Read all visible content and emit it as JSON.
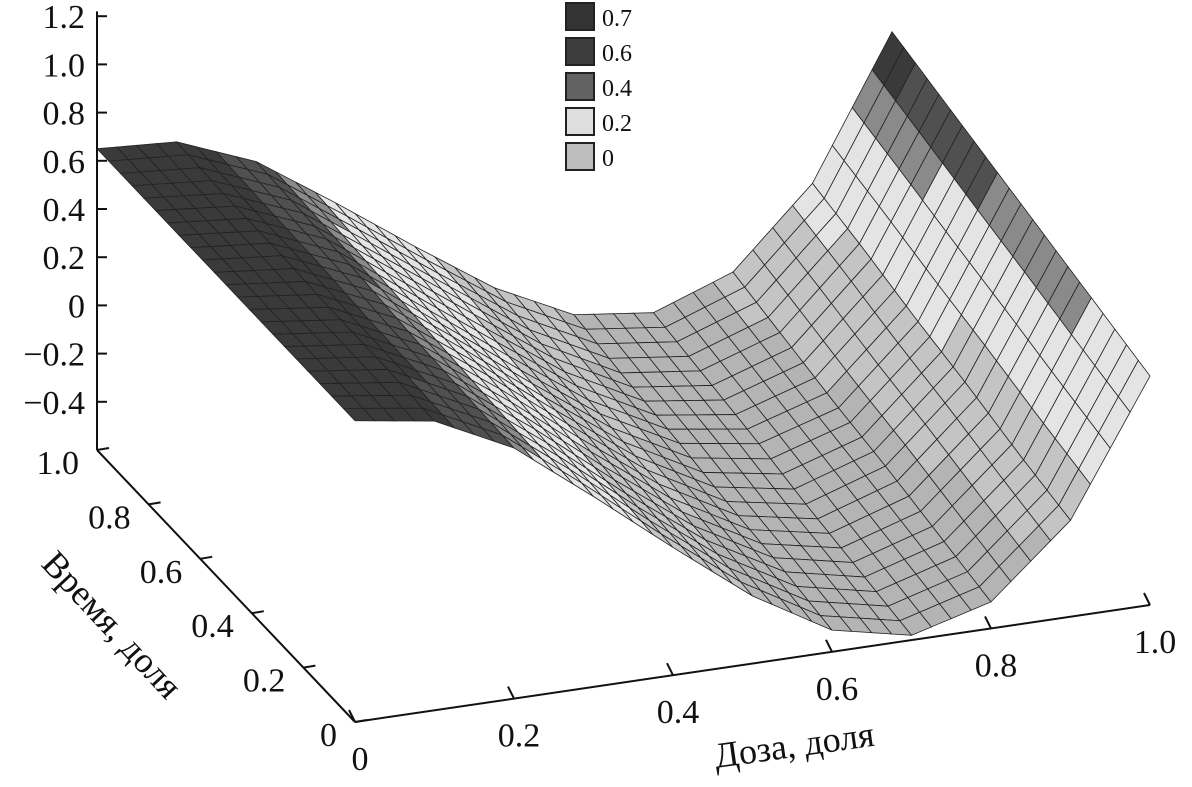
{
  "chart_data": {
    "type": "surface",
    "x_axis": {
      "label": "Доза, доля",
      "ticks": [
        "0",
        "0.2",
        "0.4",
        "0.6",
        "0.8",
        "1.0"
      ],
      "range": [
        0,
        1
      ]
    },
    "y_axis": {
      "label": "Время, доля",
      "ticks": [
        "0",
        "0.2",
        "0.4",
        "0.6",
        "0.8",
        "1.0"
      ],
      "range": [
        0,
        1
      ]
    },
    "z_axis": {
      "label": "",
      "ticks": [
        "1.2",
        "1.0",
        "0.8",
        "0.6",
        "0.4",
        "0.2",
        "0",
        "−0.2",
        "−0.4"
      ],
      "range": [
        -0.6,
        1.2
      ]
    },
    "legend": [
      {
        "label": "0.7",
        "color": "#333333"
      },
      {
        "label": "0.6",
        "color": "#3d3d3d"
      },
      {
        "label": "0.4",
        "color": "#626262"
      },
      {
        "label": "0.2",
        "color": "#dedede"
      },
      {
        "label": "0",
        "color": "#bdbdbd"
      }
    ],
    "dose": [
      0,
      0.1,
      0.2,
      0.3,
      0.4,
      0.5,
      0.6,
      0.7,
      0.8,
      0.9,
      1.0
    ],
    "time": [
      0,
      0.2,
      0.4,
      0.6,
      0.8,
      1.0
    ],
    "z": [
      [
        0.65,
        0.6,
        0.44,
        0.19,
        -0.07,
        -0.32,
        -0.51,
        -0.58,
        -0.49,
        -0.2,
        0.35
      ],
      [
        0.65,
        0.61,
        0.45,
        0.21,
        -0.05,
        -0.29,
        -0.47,
        -0.54,
        -0.44,
        -0.15,
        0.41
      ],
      [
        0.65,
        0.61,
        0.46,
        0.23,
        -0.02,
        -0.26,
        -0.44,
        -0.5,
        -0.39,
        -0.09,
        0.47
      ],
      [
        0.65,
        0.62,
        0.48,
        0.24,
        0.0,
        -0.23,
        -0.4,
        -0.45,
        -0.35,
        -0.04,
        0.53
      ],
      [
        0.65,
        0.62,
        0.49,
        0.26,
        0.03,
        -0.2,
        -0.37,
        -0.41,
        -0.3,
        0.02,
        0.59
      ],
      [
        0.65,
        0.63,
        0.5,
        0.28,
        0.05,
        -0.17,
        -0.33,
        -0.37,
        -0.25,
        0.07,
        0.65
      ]
    ],
    "grid": false
  }
}
